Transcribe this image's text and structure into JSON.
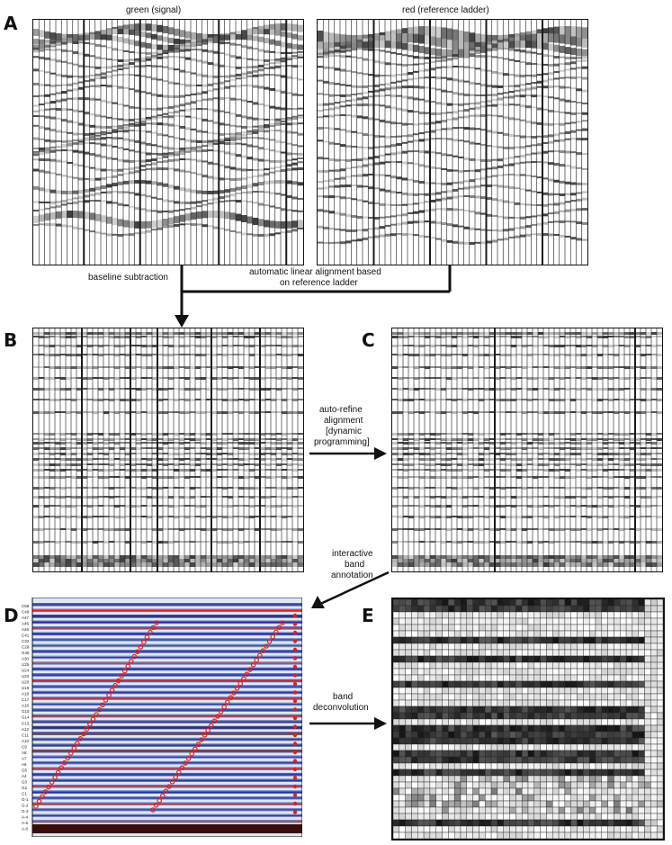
{
  "panels": {
    "A": "A",
    "B": "B",
    "C": "C",
    "D": "D",
    "E": "E"
  },
  "panel_a": {
    "left_title": "green (signal)",
    "right_title": "red (reference ladder)"
  },
  "flow_labels": {
    "baseline": "baseline subtraction",
    "alignment_line1": "automatic linear  alignment based",
    "alignment_line2": "on reference ladder",
    "refine_line1": "auto-refine",
    "refine_line2": "alignment",
    "refine_line3": "[dynamic",
    "refine_line4": "programming]",
    "interactive_line1": "interactive",
    "interactive_line2": "band",
    "interactive_line3": "annotation",
    "band_line1": "band",
    "band_line2": "deconvolution"
  },
  "panel_d_row_labels": [
    "C59",
    "C49",
    "A47",
    "A46",
    "A45",
    "C41",
    "C32",
    "C28",
    "G35",
    "A30",
    "U25",
    "U24",
    "U22",
    "U20",
    "U19",
    "A18",
    "C17",
    "A16",
    "G15",
    "G14",
    "C13",
    "A12",
    "C11",
    "A10",
    "C9",
    "A8",
    "A7",
    "A6",
    "G5",
    "A4",
    "G3",
    "G2",
    "C1",
    "G-1",
    "G-2",
    "G-3",
    "A-4",
    "A-5",
    "A-6"
  ],
  "colors": {
    "gel_dark": "#111111",
    "annotation_red": "#e0201a",
    "annotation_blue": "#1c2aa8",
    "lane_line": "#1a1a1a"
  }
}
